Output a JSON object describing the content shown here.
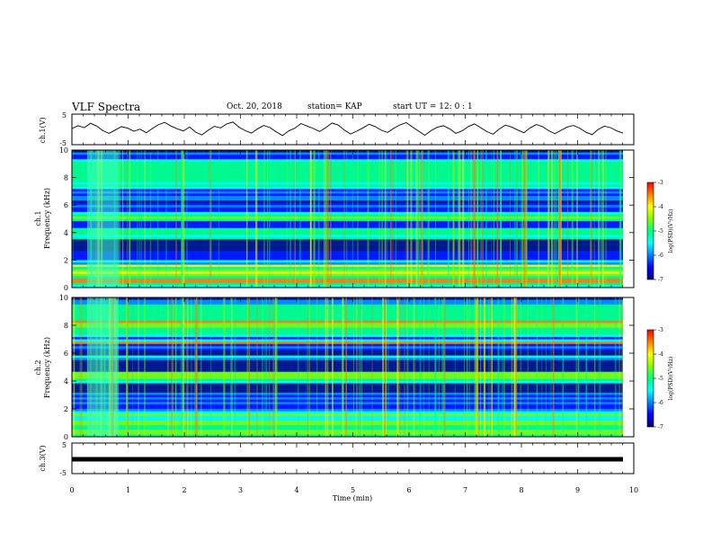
{
  "header": {
    "title": "VLF Spectra",
    "date": "Oct. 20, 2018",
    "station": "station= KAP",
    "start_ut": "start  UT =   12: 0  : 1"
  },
  "colors": {
    "spec_stops": [
      "#000080",
      "#0000ff",
      "#0080ff",
      "#00ffff",
      "#00ff80",
      "#80ff00",
      "#ffff00",
      "#ff8000",
      "#ff0000"
    ]
  },
  "chart_data": [
    {
      "id": "ch1_waveform",
      "type": "line",
      "ylabel": "ch.1(V)",
      "ylim": [
        -5,
        5
      ],
      "yticks": [
        "5",
        "-5"
      ],
      "xlim": [
        0,
        10
      ],
      "values_note": "",
      "series": [
        {
          "values": [
            0.3,
            1.2,
            0.6,
            2.0,
            1.1,
            -0.4,
            -1.3,
            -0.2,
            0.9,
            0.4,
            -0.6,
            0.1,
            -1.1,
            0.3,
            1.6,
            2.3,
            1.1,
            0.2,
            -0.5,
            0.8,
            -0.9,
            -1.8,
            -0.3,
            1.0,
            0.5,
            1.8,
            2.4,
            0.7,
            -0.4,
            -1.2,
            0.2,
            1.3,
            0.6,
            -0.8,
            -2.0,
            -0.5,
            0.4,
            1.9,
            1.1,
            0.3,
            -0.7,
            0.6,
            2.1,
            1.4,
            -0.2,
            -1.5,
            -0.6,
            0.5,
            1.7,
            0.9,
            -0.3,
            -1.0,
            0.4,
            1.5,
            2.2,
            0.8,
            -0.6,
            -1.9,
            -0.4,
            0.7,
            1.2,
            0.2,
            -1.3,
            -0.5,
            0.9,
            1.8,
            0.6,
            -0.7,
            -1.6,
            0.1,
            1.4,
            0.8,
            -0.2,
            -1.1,
            0.5,
            1.6,
            0.9,
            -0.4,
            -1.4,
            -0.3,
            0.8,
            1.3,
            0.4,
            -0.9,
            -1.7,
            0.0,
            1.1,
            0.6,
            -0.5,
            -1.2
          ]
        }
      ]
    },
    {
      "id": "ch1_spectrogram",
      "type": "heatmap",
      "ylabel_line1": "ch.1",
      "ylabel_line2": "Frequency (kHz)",
      "ylim": [
        0,
        10
      ],
      "yticks": [
        "10",
        "8",
        "6",
        "4",
        "2",
        "0"
      ],
      "xlim": [
        0,
        10
      ],
      "colorbar": {
        "label": "log(PSD)(V²/Hz)",
        "range": [
          -7,
          -3
        ],
        "ticks": [
          "-3",
          "-4",
          "-5",
          "-6",
          "-7"
        ]
      }
    },
    {
      "id": "ch2_spectrogram",
      "type": "heatmap",
      "ylabel_line1": "ch.2",
      "ylabel_line2": "Frequency (kHz)",
      "ylim": [
        0,
        10
      ],
      "yticks": [
        "10",
        "8",
        "6",
        "4",
        "2",
        "0"
      ],
      "xlim": [
        0,
        10
      ],
      "colorbar": {
        "label": "log(PSD)(V²/Hz)",
        "range": [
          -7,
          -3
        ],
        "ticks": [
          "-3",
          "-4",
          "-5",
          "-6",
          "-7"
        ]
      }
    },
    {
      "id": "ch3_waveform",
      "type": "line",
      "ylabel": "ch.3(V)",
      "ylim": [
        -5,
        5
      ],
      "yticks": [
        "5",
        "-5"
      ],
      "xlim": [
        0,
        10
      ],
      "series": [
        {
          "values": [
            0,
            0
          ]
        }
      ]
    }
  ],
  "xaxis": {
    "label": "Time  (min)",
    "ticks": [
      "0",
      "1",
      "2",
      "3",
      "4",
      "5",
      "6",
      "7",
      "8",
      "9",
      "10"
    ]
  }
}
